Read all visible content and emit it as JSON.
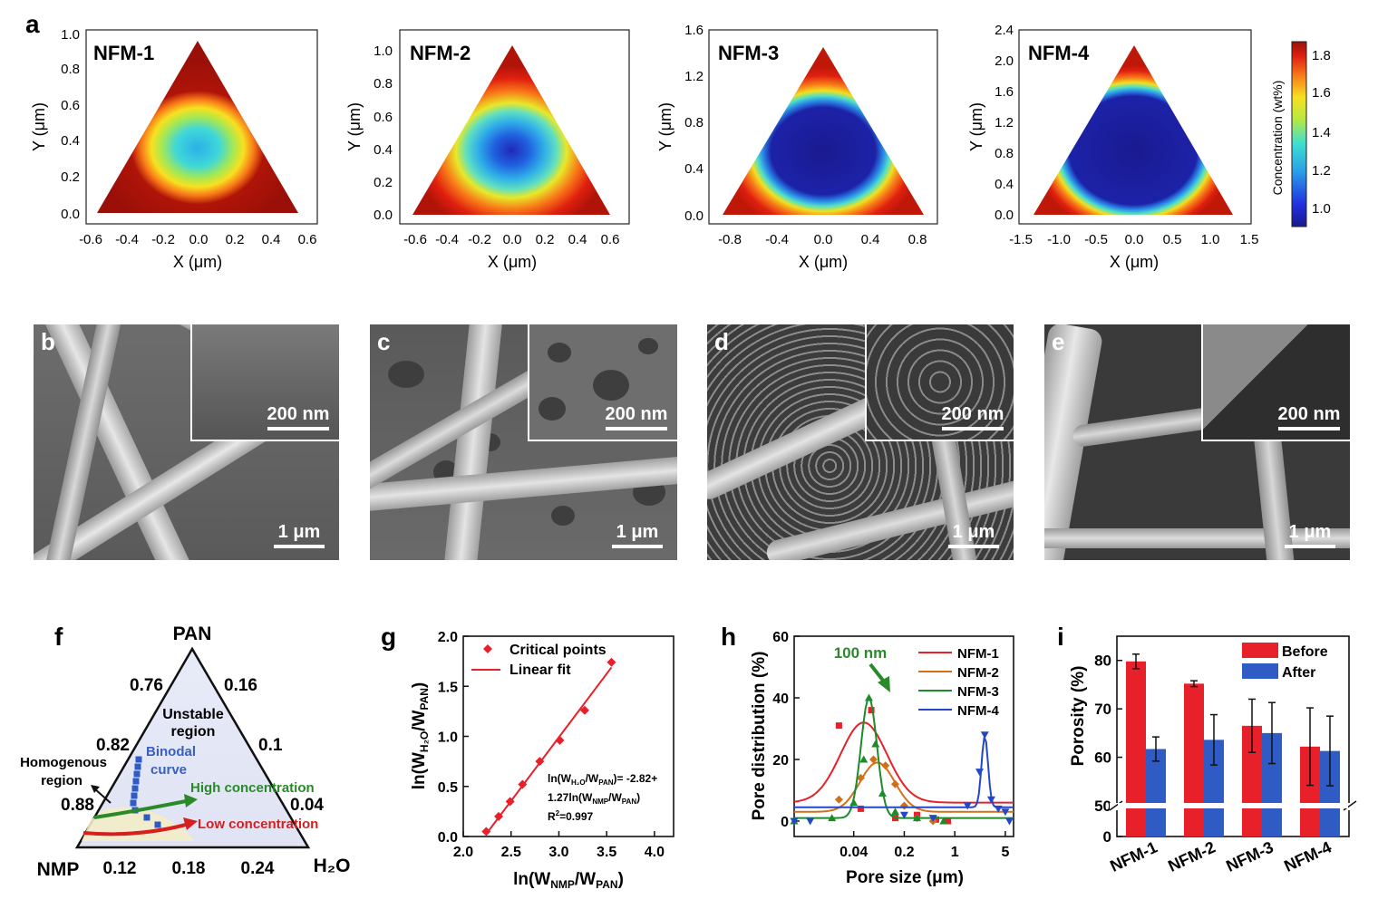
{
  "panels": {
    "a": {
      "letter": "a",
      "colorbar": {
        "title": "Concentration (wt%)",
        "ticks": [
          "1.8",
          "1.6",
          "1.4",
          "1.2",
          "1.0"
        ]
      },
      "maps": [
        {
          "name": "NFM-1",
          "xlabel": "X (μm)",
          "ylabel": "Y (μm)",
          "xticks": [
            "-0.6",
            "-0.4",
            "-0.2",
            "0.0",
            "0.2",
            "0.4",
            "0.6"
          ],
          "yticks": [
            "1.0",
            "0.8",
            "0.6",
            "0.4",
            "0.2",
            "0.0"
          ],
          "core": "small"
        },
        {
          "name": "NFM-2",
          "xlabel": "X (μm)",
          "ylabel": "Y (μm)",
          "xticks": [
            "-0.6",
            "-0.4",
            "-0.2",
            "0.0",
            "0.2",
            "0.4",
            "0.6"
          ],
          "yticks": [
            "1.0",
            "0.8",
            "0.6",
            "0.4",
            "0.2",
            "0.0"
          ],
          "core": "medium"
        },
        {
          "name": "NFM-3",
          "xlabel": "X (μm)",
          "ylabel": "Y (μm)",
          "xticks": [
            "-0.8",
            "-0.4",
            "0.0",
            "0.4",
            "0.8"
          ],
          "yticks": [
            "1.6",
            "1.2",
            "0.8",
            "0.4",
            "0.0"
          ],
          "core": "large"
        },
        {
          "name": "NFM-4",
          "xlabel": "X (μm)",
          "ylabel": "Y (μm)",
          "xticks": [
            "-1.5",
            "-1.0",
            "-0.5",
            "0.0",
            "0.5",
            "1.0",
            "1.5"
          ],
          "yticks": [
            "2.4",
            "2.0",
            "1.6",
            "1.2",
            "0.8",
            "0.4",
            "0.0"
          ],
          "core": "full"
        }
      ]
    },
    "sem": [
      {
        "letter": "b",
        "inset_scale": "200 nm",
        "main_scale": "1 μm"
      },
      {
        "letter": "c",
        "inset_scale": "200 nm",
        "main_scale": "1 μm"
      },
      {
        "letter": "d",
        "inset_scale": "200 nm",
        "main_scale": "1 μm"
      },
      {
        "letter": "e",
        "inset_scale": "200 nm",
        "main_scale": "1 μm"
      }
    ],
    "f": {
      "letter": "f",
      "vertices": {
        "top": "PAN",
        "left": "NMP",
        "right": "H₂O"
      },
      "left_ticks": [
        "0.76",
        "0.82",
        "0.88"
      ],
      "right_ticks": [
        "0.16",
        "0.1",
        "0.04"
      ],
      "bottom_ticks": [
        "0.12",
        "0.18",
        "0.24"
      ],
      "labels": {
        "unstable": [
          "Unstable",
          "region"
        ],
        "binodal": [
          "Binodal",
          "curve"
        ],
        "homogenous": [
          "Homogenous",
          "region"
        ],
        "high": "High concentration",
        "low": "Low concentration"
      }
    },
    "g": {
      "letter": "g",
      "legend": [
        "Critical points",
        "Linear fit"
      ],
      "equation": [
        "ln(W",
        "H₂O",
        "/W",
        "PAN",
        ")= -2.82+",
        "1.27ln(W",
        "NMP",
        "/W",
        "PAN",
        ")",
        "R",
        "2",
        "=0.997"
      ]
    },
    "h": {
      "letter": "h",
      "annotation": "100 nm"
    },
    "i": {
      "letter": "i"
    }
  },
  "chart_data": [
    {
      "panel": "g",
      "type": "scatter",
      "xlabel": "ln(WNMP/WPAN)",
      "ylabel": "ln(WH2O/WPAN)",
      "xticks": [
        "2.0",
        "2.5",
        "3.0",
        "3.5",
        "4.0"
      ],
      "yticks": [
        "0.0",
        "0.5",
        "1.0",
        "1.5",
        "2.0"
      ],
      "xlim": [
        2.0,
        4.2
      ],
      "ylim": [
        0.0,
        2.0
      ],
      "series": [
        {
          "name": "Critical points",
          "marker": "diamond",
          "color": "#e8202a",
          "x": [
            2.24,
            2.37,
            2.49,
            2.62,
            2.8,
            3.01,
            3.27,
            3.55
          ],
          "y": [
            0.05,
            0.2,
            0.35,
            0.52,
            0.75,
            0.96,
            1.26,
            1.74
          ]
        },
        {
          "name": "Linear fit",
          "kind": "line",
          "color": "#e8202a",
          "slope": 1.27,
          "intercept": -2.82,
          "x_range": [
            2.24,
            3.55
          ]
        }
      ]
    },
    {
      "panel": "h",
      "type": "scatter",
      "xlabel": "Pore size (μm)",
      "ylabel": "Pore distribution (%)",
      "xscale": "log",
      "xticks": [
        "0.04",
        "0.2",
        "1",
        "5"
      ],
      "yticks": [
        "0",
        "20",
        "40",
        "60"
      ],
      "xlim": [
        0.006,
        6.5
      ],
      "ylim": [
        -5,
        60
      ],
      "series": [
        {
          "name": "NFM-1",
          "color": "#e8202a",
          "marker": "square",
          "points": [
            [
              0.025,
              31
            ],
            [
              0.07,
              36
            ],
            [
              0.05,
              4
            ],
            [
              0.15,
              1
            ],
            [
              0.3,
              2
            ],
            [
              0.55,
              0.5
            ],
            [
              0.8,
              0
            ]
          ],
          "fit": {
            "center": 0.055,
            "width": 0.32,
            "amp": 26,
            "base": 6
          }
        },
        {
          "name": "NFM-2",
          "color": "#d2701a",
          "marker": "diamond",
          "points": [
            [
              0.025,
              7
            ],
            [
              0.05,
              14
            ],
            [
              0.075,
              20
            ],
            [
              0.11,
              18
            ],
            [
              0.15,
              12
            ],
            [
              0.2,
              5
            ],
            [
              0.3,
              1
            ],
            [
              0.5,
              0
            ]
          ],
          "fit": {
            "center": 0.085,
            "width": 0.24,
            "amp": 16,
            "base": 3
          }
        },
        {
          "name": "NFM-3",
          "color": "#1e8a2a",
          "marker": "triangle",
          "points": [
            [
              0.006,
              0
            ],
            [
              0.02,
              1
            ],
            [
              0.04,
              6
            ],
            [
              0.055,
              20
            ],
            [
              0.065,
              40
            ],
            [
              0.08,
              25
            ],
            [
              0.1,
              9
            ],
            [
              0.15,
              3
            ],
            [
              0.3,
              1
            ],
            [
              0.7,
              0
            ]
          ],
          "fit": {
            "center": 0.065,
            "width": 0.11,
            "amp": 39,
            "base": 1
          }
        },
        {
          "name": "NFM-4",
          "color": "#2447c9",
          "marker": "triangle-down",
          "points": [
            [
              0.006,
              0
            ],
            [
              0.01,
              0
            ],
            [
              0.2,
              2
            ],
            [
              0.5,
              1
            ],
            [
              1.5,
              5
            ],
            [
              2.2,
              16
            ],
            [
              2.6,
              28
            ],
            [
              3.2,
              7
            ],
            [
              4.0,
              4
            ],
            [
              5.0,
              3
            ],
            [
              5.7,
              0
            ]
          ],
          "fit": {
            "center": 2.6,
            "width": 0.045,
            "amp": 23,
            "base": 4.5
          }
        }
      ]
    },
    {
      "panel": "i",
      "type": "bar",
      "ylabel": "Porosity (%)",
      "categories": [
        "NFM-1",
        "NFM-2",
        "NFM-3",
        "NFM-4"
      ],
      "yticks": [
        "0",
        "50",
        "60",
        "70",
        "80"
      ],
      "axis_break": [
        5,
        50
      ],
      "series": [
        {
          "name": "Before",
          "color": "#e8202a",
          "values": [
            79.8,
            75.2,
            66.5,
            62.2
          ],
          "errors": [
            1.5,
            0.6,
            5.5,
            8.0
          ]
        },
        {
          "name": "After",
          "color": "#2f5bc4",
          "values": [
            61.7,
            63.6,
            65.0,
            61.3
          ],
          "errors": [
            2.5,
            5.2,
            6.3,
            7.2
          ]
        }
      ]
    }
  ]
}
